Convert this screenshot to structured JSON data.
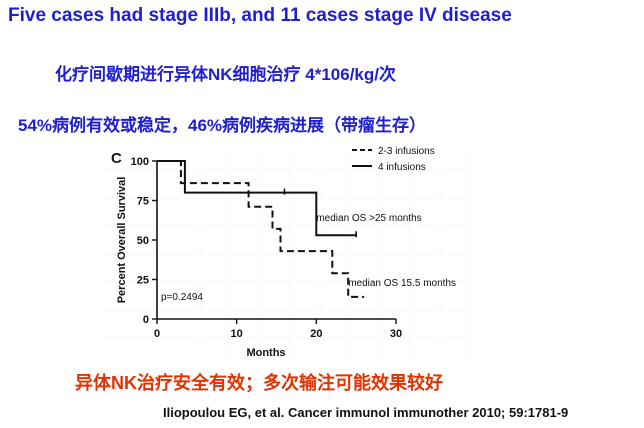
{
  "slide": {
    "title": "Five cases had stage IIIb, and 11 cases stage IV disease",
    "line_cn_1": "化疗间歇期进行异体NK细胞治疗  4*106/kg/次",
    "line_cn_2": "54%病例有效或稳定，46%病例疾病进展（带瘤生存）",
    "conclusion": "异体NK治疗安全有效；多次输注可能效果较好",
    "citation": "Iliopoulou EG, et al. Cancer immunol immunother 2010; 59:1781-9",
    "colors": {
      "title": "#1f1fcf",
      "conclusion": "#e23200"
    }
  },
  "chart_data": {
    "type": "line",
    "panel_label": "C",
    "xlabel": "Months",
    "ylabel": "Percent Overall Survival",
    "xlim": [
      0,
      30
    ],
    "ylim": [
      0,
      100
    ],
    "xticks": [
      0,
      10,
      20,
      30
    ],
    "yticks": [
      0,
      25,
      50,
      75,
      100
    ],
    "legend_position": "top-right",
    "series": [
      {
        "name": "2-3 infusions",
        "style": "dashed",
        "points": [
          [
            0,
            100
          ],
          [
            3,
            100
          ],
          [
            3,
            86
          ],
          [
            11.5,
            86
          ],
          [
            11.5,
            71
          ],
          [
            14.5,
            71
          ],
          [
            14.5,
            57
          ],
          [
            15.5,
            57
          ],
          [
            15.5,
            43
          ],
          [
            22,
            43
          ],
          [
            22,
            29
          ],
          [
            24,
            29
          ],
          [
            24,
            14
          ],
          [
            26,
            14
          ]
        ],
        "censor": []
      },
      {
        "name": "4 infusions",
        "style": "solid",
        "points": [
          [
            0,
            100
          ],
          [
            3.5,
            100
          ],
          [
            3.5,
            80
          ],
          [
            20,
            80
          ],
          [
            20,
            53
          ],
          [
            25,
            53
          ]
        ],
        "censor": [
          [
            16,
            80
          ],
          [
            25,
            53
          ]
        ]
      }
    ],
    "annotations": [
      {
        "text": "median OS >25 months",
        "x": 20,
        "y": 62
      },
      {
        "text": "median OS 15.5 months",
        "x": 24,
        "y": 21
      },
      {
        "text": "p=0.2494",
        "x": 0.5,
        "y": 12
      }
    ]
  }
}
